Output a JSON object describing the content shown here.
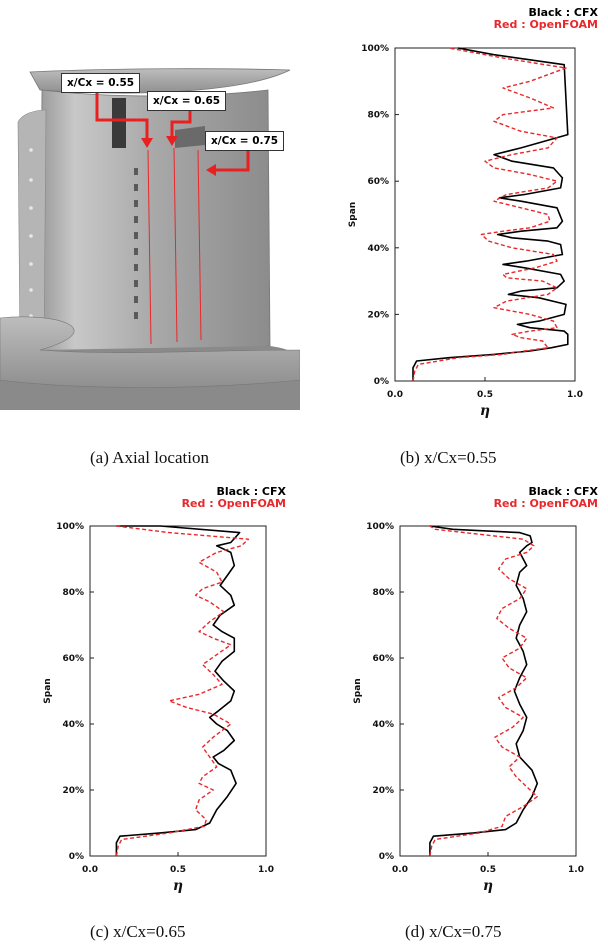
{
  "panel_a": {
    "labels": [
      "x/Cx = 0.55",
      "x/Cx = 0.65",
      "x/Cx = 0.75"
    ],
    "caption": "(a)  Axial location"
  },
  "legend": {
    "black": "Black : CFX",
    "red": "Red : OpenFOAM"
  },
  "colors": {
    "cfx": "#000000",
    "openfoam": "#e8282b"
  },
  "chart_data": [
    {
      "id": "b",
      "type": "line",
      "caption": "(b)  x/Cx=0.55",
      "xlabel": "η",
      "ylabel": "Span",
      "xlim": [
        0,
        1
      ],
      "ylim": [
        0,
        100
      ],
      "xticks": [
        "0.0",
        "0.5",
        "1.0"
      ],
      "yticks": [
        "0%",
        "20%",
        "40%",
        "60%",
        "80%",
        "100%"
      ],
      "series": [
        {
          "name": "CFX",
          "color": "#000000",
          "style": "solid",
          "x": [
            0.1,
            0.1,
            0.12,
            0.3,
            0.55,
            0.75,
            0.87,
            0.96,
            0.96,
            0.94,
            0.75,
            0.68,
            0.8,
            0.94,
            0.95,
            0.8,
            0.63,
            0.7,
            0.9,
            0.94,
            0.92,
            0.72,
            0.6,
            0.73,
            0.93,
            0.92,
            0.85,
            0.65,
            0.57,
            0.7,
            0.9,
            0.93,
            0.9,
            0.7,
            0.58,
            0.72,
            0.92,
            0.93,
            0.88,
            0.65,
            0.55,
            0.7,
            0.96,
            0.94,
            0.55,
            0.35
          ],
          "y": [
            0,
            4,
            6,
            7,
            8,
            9,
            10,
            11,
            14,
            15,
            16,
            17,
            18,
            20,
            23,
            25,
            26,
            27,
            28,
            30,
            32,
            34,
            35,
            36,
            38,
            41,
            42,
            43,
            44,
            45,
            46,
            48,
            52,
            54,
            55,
            56,
            58,
            61,
            64,
            66,
            68,
            70,
            74,
            95,
            98,
            100
          ]
        },
        {
          "name": "OpenFOAM",
          "color": "#e8282b",
          "style": "dashed",
          "x": [
            0.1,
            0.11,
            0.13,
            0.35,
            0.6,
            0.72,
            0.85,
            0.82,
            0.7,
            0.65,
            0.75,
            0.9,
            0.88,
            0.75,
            0.55,
            0.62,
            0.85,
            0.9,
            0.82,
            0.62,
            0.6,
            0.78,
            0.9,
            0.88,
            0.65,
            0.52,
            0.48,
            0.6,
            0.75,
            0.86,
            0.85,
            0.7,
            0.55,
            0.62,
            0.85,
            0.9,
            0.75,
            0.55,
            0.5,
            0.65,
            0.85,
            0.9,
            0.7,
            0.55,
            0.6,
            0.88,
            0.75,
            0.6,
            0.75,
            0.95,
            0.6,
            0.3
          ],
          "y": [
            0,
            3,
            5,
            7,
            8,
            9,
            10,
            12,
            13,
            14,
            15,
            16,
            18,
            20,
            22,
            24,
            26,
            28,
            30,
            31,
            32,
            34,
            36,
            38,
            40,
            42,
            44,
            45,
            46,
            48,
            50,
            52,
            54,
            56,
            58,
            60,
            62,
            64,
            66,
            68,
            70,
            73,
            75,
            78,
            80,
            82,
            85,
            88,
            90,
            94,
            97,
            100
          ]
        }
      ]
    },
    {
      "id": "c",
      "type": "line",
      "caption": "(c)  x/Cx=0.65",
      "xlabel": "η",
      "ylabel": "Span",
      "xlim": [
        0,
        1
      ],
      "ylim": [
        0,
        100
      ],
      "xticks": [
        "0.0",
        "0.5",
        "1.0"
      ],
      "yticks": [
        "0%",
        "20%",
        "40%",
        "60%",
        "80%",
        "100%"
      ],
      "series": [
        {
          "name": "CFX",
          "color": "#000000",
          "style": "solid",
          "x": [
            0.15,
            0.15,
            0.17,
            0.4,
            0.6,
            0.68,
            0.72,
            0.78,
            0.83,
            0.8,
            0.73,
            0.7,
            0.76,
            0.82,
            0.78,
            0.72,
            0.68,
            0.73,
            0.8,
            0.82,
            0.76,
            0.71,
            0.75,
            0.82,
            0.82,
            0.75,
            0.7,
            0.74,
            0.82,
            0.8,
            0.74,
            0.78,
            0.82,
            0.8,
            0.72,
            0.8,
            0.85,
            0.4,
            0.15
          ],
          "y": [
            0,
            4,
            6,
            7,
            8,
            10,
            14,
            18,
            22,
            26,
            28,
            30,
            32,
            35,
            38,
            40,
            42,
            44,
            47,
            50,
            53,
            56,
            59,
            62,
            66,
            68,
            70,
            73,
            76,
            79,
            82,
            85,
            88,
            92,
            94,
            95,
            98,
            100,
            100
          ]
        },
        {
          "name": "OpenFOAM",
          "color": "#e8282b",
          "style": "dashed",
          "x": [
            0.15,
            0.16,
            0.18,
            0.45,
            0.65,
            0.66,
            0.6,
            0.62,
            0.7,
            0.62,
            0.64,
            0.72,
            0.68,
            0.64,
            0.7,
            0.8,
            0.7,
            0.55,
            0.45,
            0.62,
            0.75,
            0.7,
            0.64,
            0.72,
            0.8,
            0.7,
            0.62,
            0.68,
            0.76,
            0.68,
            0.6,
            0.64,
            0.75,
            0.72,
            0.62,
            0.72,
            0.86,
            0.9,
            0.45,
            0.15
          ],
          "y": [
            0,
            3,
            5,
            7,
            9,
            11,
            14,
            17,
            20,
            22,
            24,
            27,
            30,
            33,
            36,
            40,
            43,
            45,
            47,
            49,
            52,
            55,
            58,
            61,
            64,
            66,
            68,
            71,
            74,
            77,
            79,
            81,
            83,
            86,
            89,
            92,
            94,
            96,
            98,
            100
          ]
        }
      ]
    },
    {
      "id": "d",
      "type": "line",
      "caption": "(d)  x/Cx=0.75",
      "xlabel": "η",
      "ylabel": "Span",
      "xlim": [
        0,
        1
      ],
      "ylim": [
        0,
        100
      ],
      "xticks": [
        "0.0",
        "0.5",
        "1.0"
      ],
      "yticks": [
        "0%",
        "20%",
        "40%",
        "60%",
        "80%",
        "100%"
      ],
      "series": [
        {
          "name": "CFX",
          "color": "#000000",
          "style": "solid",
          "x": [
            0.17,
            0.17,
            0.19,
            0.42,
            0.6,
            0.66,
            0.7,
            0.75,
            0.78,
            0.75,
            0.68,
            0.66,
            0.7,
            0.72,
            0.68,
            0.65,
            0.68,
            0.72,
            0.7,
            0.66,
            0.68,
            0.72,
            0.7,
            0.66,
            0.68,
            0.72,
            0.7,
            0.68,
            0.72,
            0.75,
            0.74,
            0.68,
            0.3,
            0.17
          ],
          "y": [
            0,
            4,
            6,
            7,
            8,
            10,
            14,
            18,
            22,
            26,
            30,
            34,
            38,
            42,
            46,
            50,
            54,
            58,
            62,
            66,
            70,
            74,
            78,
            82,
            86,
            88,
            90,
            92,
            94,
            95,
            97,
            98,
            99,
            100
          ]
        },
        {
          "name": "OpenFOAM",
          "color": "#e8282b",
          "style": "dashed",
          "x": [
            0.17,
            0.18,
            0.2,
            0.45,
            0.58,
            0.6,
            0.7,
            0.78,
            0.72,
            0.66,
            0.62,
            0.68,
            0.58,
            0.54,
            0.64,
            0.7,
            0.6,
            0.56,
            0.66,
            0.72,
            0.62,
            0.58,
            0.68,
            0.72,
            0.62,
            0.55,
            0.58,
            0.68,
            0.72,
            0.62,
            0.56,
            0.6,
            0.72,
            0.76,
            0.7,
            0.2,
            0.17
          ],
          "y": [
            0,
            3,
            5,
            7,
            9,
            12,
            15,
            18,
            21,
            24,
            27,
            30,
            33,
            36,
            39,
            42,
            45,
            48,
            51,
            54,
            57,
            60,
            63,
            66,
            69,
            72,
            75,
            78,
            81,
            84,
            87,
            90,
            92,
            94,
            96,
            99,
            100
          ]
        }
      ]
    }
  ]
}
